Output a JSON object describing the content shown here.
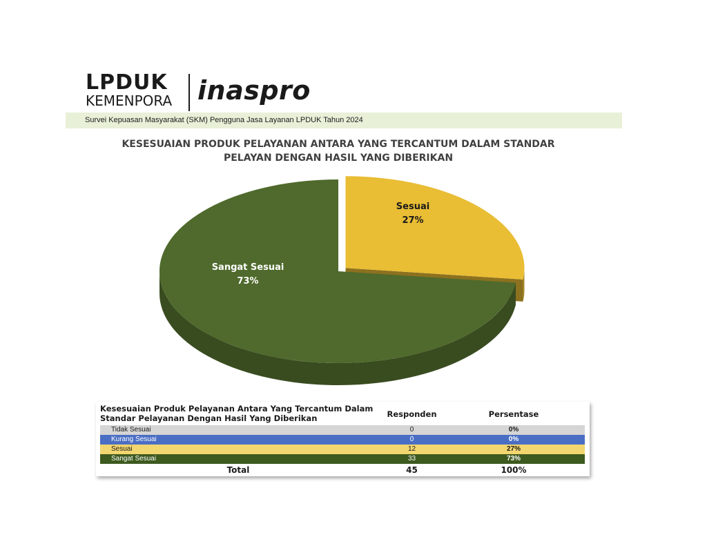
{
  "logo": {
    "line1": "LPDUK",
    "line2": "KEMENPORA",
    "brand": "inaspro"
  },
  "survey_band": "Survei Kepuasan Masyarakat (SKM) Pengguna Jasa Layanan LPDUK Tahun 2024",
  "chart_data": {
    "type": "pie",
    "title_lines": [
      "KESESUAIAN PRODUK PELAYANAN ANTARA YANG TERCANTUM DALAM STANDAR",
      "PELAYAN DENGAN HASIL YANG DIBERIKAN"
    ],
    "slices": [
      {
        "label": "Sesuai",
        "value": 27,
        "pct_label": "27%",
        "color": "#e9bd34",
        "exploded": true
      },
      {
        "label": "Sangat Sesuai",
        "value": 73,
        "pct_label": "73%",
        "color": "#4f6a2c",
        "exploded": false
      }
    ]
  },
  "table": {
    "header": {
      "category_line1": "Kesesuaian Produk Pelayanan Antara Yang Tercantum Dalam",
      "category_line2": "Standar Pelayanan Dengan Hasil Yang Diberikan",
      "responden": "Responden",
      "persentase": "Persentase"
    },
    "rows": [
      {
        "label": "Tidak Sesuai",
        "responden": "0",
        "persentase": "0%",
        "bg": "#d5d5d5",
        "fg": "#1a1a1a"
      },
      {
        "label": "Kurang Sesuai",
        "responden": "0",
        "persentase": "0%",
        "bg": "#4a6ec4",
        "fg": "#ffffff"
      },
      {
        "label": "Sesuai",
        "responden": "12",
        "persentase": "27%",
        "bg": "#f2d66f",
        "fg": "#1a1a1a"
      },
      {
        "label": "Sangat Sesuai",
        "responden": "33",
        "persentase": "73%",
        "bg": "#3d5a1f",
        "fg": "#ffffff"
      }
    ],
    "total": {
      "label": "Total",
      "responden": "45",
      "persentase": "100%"
    }
  }
}
